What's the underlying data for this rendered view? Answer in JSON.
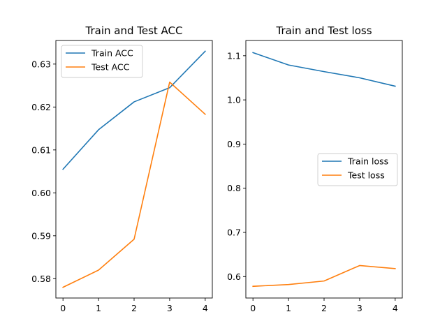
{
  "chart_data": [
    {
      "type": "line",
      "title": "Train and Test ACC",
      "xlabel": "",
      "ylabel": "",
      "x": [
        0,
        1,
        2,
        3,
        4
      ],
      "xticks": [
        "0",
        "1",
        "2",
        "3",
        "4"
      ],
      "yticks": [
        "0.58",
        "0.59",
        "0.60",
        "0.61",
        "0.62",
        "0.63"
      ],
      "ytick_values": [
        0.58,
        0.59,
        0.6,
        0.61,
        0.62,
        0.63
      ],
      "xlim": [
        -0.2,
        4.2
      ],
      "ylim": [
        0.5755,
        0.6355
      ],
      "grid": false,
      "legend_position": "upper-left",
      "series": [
        {
          "name": "Train ACC",
          "color": "#1f77b4",
          "values": [
            0.6055,
            0.6147,
            0.6212,
            0.6245,
            0.633
          ]
        },
        {
          "name": "Test ACC",
          "color": "#ff7f0e",
          "values": [
            0.578,
            0.582,
            0.5892,
            0.6258,
            0.6183
          ]
        }
      ]
    },
    {
      "type": "line",
      "title": "Train and Test loss",
      "xlabel": "",
      "ylabel": "",
      "x": [
        0,
        1,
        2,
        3,
        4
      ],
      "xticks": [
        "0",
        "1",
        "2",
        "3",
        "4"
      ],
      "yticks": [
        "0.6",
        "0.7",
        "0.8",
        "0.9",
        "1.0",
        "1.1"
      ],
      "ytick_values": [
        0.6,
        0.7,
        0.8,
        0.9,
        1.0,
        1.1
      ],
      "xlim": [
        -0.2,
        4.2
      ],
      "ylim": [
        0.5515,
        1.1345
      ],
      "grid": false,
      "legend_position": "center-right",
      "series": [
        {
          "name": "Train loss",
          "color": "#1f77b4",
          "values": [
            1.107,
            1.079,
            1.064,
            1.05,
            1.031
          ]
        },
        {
          "name": "Test loss",
          "color": "#ff7f0e",
          "values": [
            0.578,
            0.582,
            0.59,
            0.625,
            0.618
          ]
        }
      ]
    }
  ]
}
